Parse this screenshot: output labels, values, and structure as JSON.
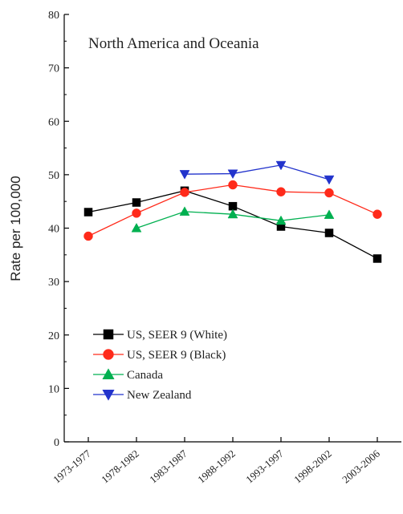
{
  "chart_data": {
    "type": "line",
    "title": "North America and Oceania",
    "xlabel": "",
    "ylabel": "Rate per 100,000",
    "categories": [
      "1973-1977",
      "1978-1982",
      "1983-1987",
      "1988-1992",
      "1993-1997",
      "1998-2002",
      "2003-2006"
    ],
    "ylim": [
      0,
      80
    ],
    "yticks": [
      0,
      10,
      20,
      30,
      40,
      50,
      60,
      70,
      80
    ],
    "grid": false,
    "legend_position": "bottom-left",
    "series": [
      {
        "name": "US, SEER 9 (White)",
        "color": "#000000",
        "marker": "square",
        "values": [
          43.0,
          44.8,
          47.0,
          44.1,
          40.3,
          39.1,
          34.3
        ]
      },
      {
        "name": "US, SEER 9 (Black)",
        "color": "#ff2a1a",
        "marker": "circle",
        "values": [
          38.5,
          42.8,
          46.7,
          48.1,
          46.8,
          46.6,
          42.6
        ]
      },
      {
        "name": "Canada",
        "color": "#00b050",
        "marker": "triangle-up",
        "values": [
          null,
          40.0,
          43.1,
          42.6,
          41.4,
          42.5,
          null
        ]
      },
      {
        "name": "New Zealand",
        "color": "#2233cc",
        "marker": "triangle-down",
        "values": [
          null,
          null,
          50.1,
          50.2,
          51.8,
          49.1,
          null
        ]
      }
    ]
  }
}
